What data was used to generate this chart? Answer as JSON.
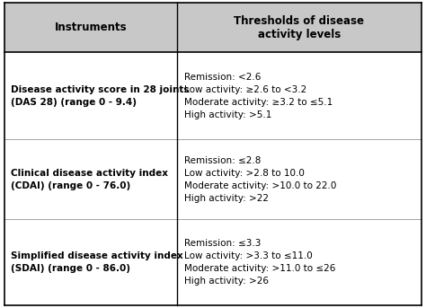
{
  "header_col1": "Instruments",
  "header_col2": "Thresholds of disease\nactivity levels",
  "rows": [
    {
      "instrument": "Disease activity score in 28 joints\n(DAS 28) (range 0 - 9.4)",
      "thresholds": "Remission: <2.6\nLow activity: ≥2.6 to <3.2\nModerate activity: ≥3.2 to ≤5.1\nHigh activity: >5.1"
    },
    {
      "instrument": "Clinical disease activity index\n(CDAI) (range 0 - 76.0)",
      "thresholds": "Remission: ≤2.8\nLow activity: >2.8 to 10.0\nModerate activity: >10.0 to 22.0\nHigh activity: >22"
    },
    {
      "instrument": "Simplified disease activity index\n(SDAI) (range 0 - 86.0)",
      "thresholds": "Remission: ≤3.3\nLow activity: >3.3 to ≤11.0\nModerate activity: >11.0 to ≤26\nHigh activity: >26"
    }
  ],
  "col_split": 0.415,
  "background_color": "#ffffff",
  "header_bg_color": "#c8c8c8",
  "border_color": "#000000",
  "text_color": "#000000",
  "header_fontsize": 8.5,
  "body_fontsize": 7.5,
  "fig_width": 4.74,
  "fig_height": 3.43,
  "dpi": 100
}
